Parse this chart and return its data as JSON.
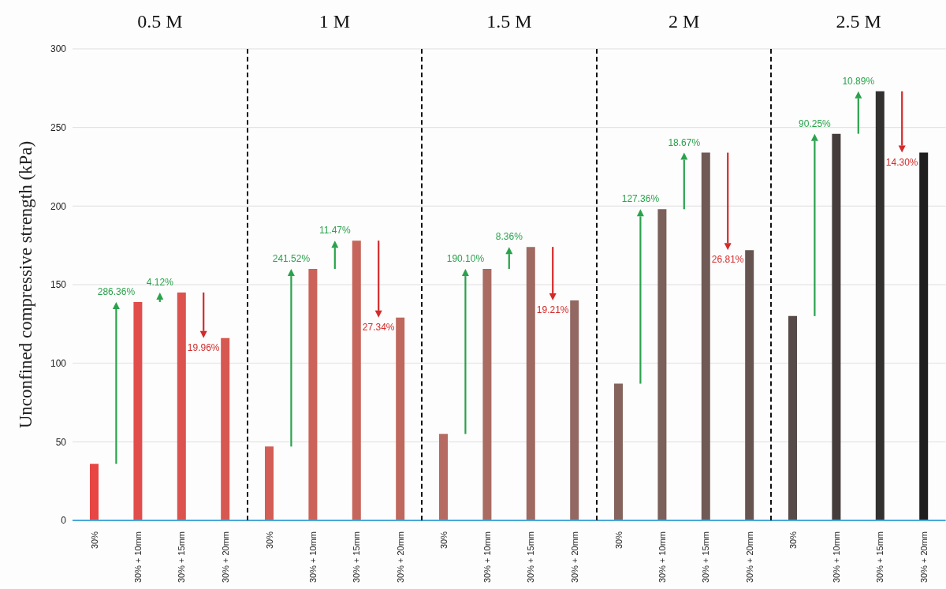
{
  "chart_data": [
    {
      "type": "bar",
      "title": "0.5 M",
      "ylabel": "Unconfined compressive strength (kPa)",
      "categories": [
        "30%",
        "30% + 10mm",
        "30% + 15mm",
        "30% + 20mm"
      ],
      "values": [
        36,
        139,
        145,
        116
      ],
      "colors": [
        "#e84545",
        "#e04d4b",
        "#dc524e",
        "#d75851"
      ],
      "ylim": [
        0,
        300
      ],
      "yticks": [
        0,
        50,
        100,
        150,
        200,
        250,
        300
      ],
      "grid": "y",
      "annotations": [
        "286.36%",
        "4.12%",
        "19.96%"
      ]
    },
    {
      "type": "bar",
      "title": "1 M",
      "categories": [
        "30%",
        "30% + 10mm",
        "30% + 15mm",
        "30% + 20mm"
      ],
      "values": [
        47,
        160,
        178,
        129
      ],
      "colors": [
        "#d25e56",
        "#cc6259",
        "#c6655b",
        "#bf685e"
      ],
      "ylim": [
        0,
        300
      ],
      "yticks": [
        0,
        50,
        100,
        150,
        200,
        250,
        300
      ],
      "grid": "y",
      "tick_labels": "x",
      "annotations": [
        "241.52%",
        "11.47%",
        "27.34%"
      ]
    },
    {
      "type": "bar",
      "title": "1.5 M",
      "categories": [
        "30%",
        "30% + 10mm",
        "30% + 15mm",
        "30% + 20mm"
      ],
      "values": [
        55,
        160,
        174,
        140
      ],
      "colors": [
        "#b56b62",
        "#a96b62",
        "#9e6a62",
        "#936862"
      ],
      "ylim": [
        0,
        300
      ],
      "yticks": [
        0,
        50,
        100,
        150,
        200,
        250,
        300
      ],
      "grid": "y",
      "tick_labels": "x",
      "annotations": [
        "190.10%",
        "8.36%",
        "19.21%"
      ]
    },
    {
      "type": "bar",
      "title": "2 M",
      "categories": [
        "30%",
        "30% + 10mm",
        "30% + 15mm",
        "30% + 20mm"
      ],
      "values": [
        87,
        198,
        234,
        172
      ],
      "colors": [
        "#86645e",
        "#7c605b",
        "#705a56",
        "#665450"
      ],
      "ylim": [
        0,
        300
      ],
      "yticks": [
        0,
        50,
        100,
        150,
        200,
        250,
        300
      ],
      "grid": "y",
      "tick_labels": "x",
      "annotations": [
        "127.36%",
        "18.67%",
        "26.81%"
      ]
    },
    {
      "type": "bar",
      "title": "2.5 M",
      "categories": [
        "30%",
        "30% + 10mm",
        "30% + 15mm",
        "30% + 20mm"
      ],
      "values": [
        130,
        246,
        273,
        234
      ],
      "colors": [
        "#564b48",
        "#443d3b",
        "#333030",
        "#201f1f"
      ],
      "ylim": [
        0,
        300
      ],
      "yticks": [
        0,
        50,
        100,
        150,
        200,
        250,
        300
      ],
      "grid": "y",
      "tick_labels": "x",
      "annotations": [
        "90.25%",
        "10.89%",
        "14.30%"
      ]
    }
  ]
}
